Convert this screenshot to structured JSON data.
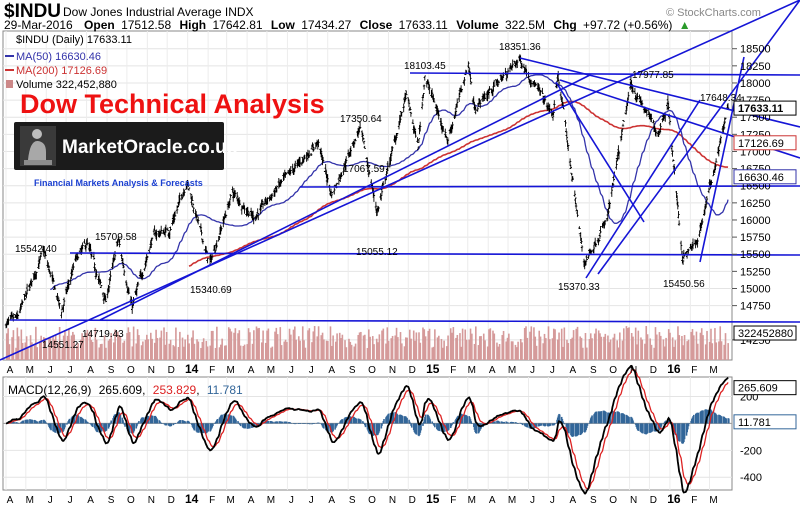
{
  "header": {
    "symbol": "$INDU",
    "name": "Dow Jones Industrial Average INDX",
    "date": "29-Mar-2016",
    "open_label": "Open",
    "open": "17512.58",
    "high_label": "High",
    "high": "17642.81",
    "low_label": "Low",
    "low": "17434.27",
    "close_label": "Close",
    "close": "17633.11",
    "volume_label": "Volume",
    "volume": "322.5M",
    "chg_label": "Chg",
    "chg": "+97.72 (+0.56%)",
    "chg_arrow": "▲",
    "credit": "© StockCharts.com"
  },
  "overlay": {
    "title": "Dow Technical Analysis",
    "logo": "MarketOracle.co.uk",
    "tagline": "Financial Markets Analysis & Forecasts"
  },
  "legend": {
    "price": "$INDU (Daily) 17633.11",
    "ma50": "MA(50) 16630.46",
    "ma200": "MA(200) 17126.69",
    "volume": "Volume 322,452,880"
  },
  "colors": {
    "price": "#000000",
    "ma50": "#3333aa",
    "ma200": "#cc3333",
    "volume": "#cc6666",
    "trendline": "#1515d6",
    "macd": "#000000",
    "signal": "#dd2222",
    "histogram": "#336699"
  },
  "chart_data": [
    {
      "type": "line",
      "ylim": [
        14000,
        18700
      ],
      "y_ticks": [
        14250,
        14750,
        15000,
        15250,
        15500,
        15750,
        16000,
        16250,
        16500,
        16750,
        17000,
        17250,
        17500,
        17750,
        18000,
        18250,
        18500
      ],
      "x_months": [
        "A",
        "M",
        "J",
        "J",
        "A",
        "S",
        "O",
        "N",
        "D",
        "14",
        "F",
        "M",
        "A",
        "M",
        "J",
        "J",
        "A",
        "S",
        "O",
        "N",
        "D",
        "15",
        "F",
        "M",
        "A",
        "M",
        "J",
        "J",
        "A",
        "S",
        "O",
        "N",
        "D",
        "16",
        "F",
        "M"
      ],
      "x_start": "2013-04",
      "price_points": [
        {
          "d": "2013-04-01",
          "v": 14480
        },
        {
          "d": "2013-04-18",
          "v": 14560
        },
        {
          "d": "2013-05-10",
          "v": 15100
        },
        {
          "d": "2013-05-28",
          "v": 15542.4
        },
        {
          "d": "2013-06-24",
          "v": 14659
        },
        {
          "d": "2013-07-15",
          "v": 15400
        },
        {
          "d": "2013-08-02",
          "v": 15658
        },
        {
          "d": "2013-08-30",
          "v": 14810
        },
        {
          "d": "2013-09-18",
          "v": 15709.58
        },
        {
          "d": "2013-10-09",
          "v": 14719.43
        },
        {
          "d": "2013-11-10",
          "v": 15780
        },
        {
          "d": "2013-12-05",
          "v": 15850
        },
        {
          "d": "2013-12-31",
          "v": 16576
        },
        {
          "d": "2014-02-03",
          "v": 15340.69
        },
        {
          "d": "2014-03-10",
          "v": 16400
        },
        {
          "d": "2014-04-11",
          "v": 16030
        },
        {
          "d": "2014-05-20",
          "v": 16500
        },
        {
          "d": "2014-07-17",
          "v": 17138
        },
        {
          "d": "2014-08-07",
          "v": 16368
        },
        {
          "d": "2014-09-19",
          "v": 17350.64
        },
        {
          "d": "2014-10-15",
          "v": 16117
        },
        {
          "d": "2014-11-28",
          "v": 17828
        },
        {
          "d": "2014-12-16",
          "v": 17067.59
        },
        {
          "d": "2014-12-26",
          "v": 18103.45
        },
        {
          "d": "2015-01-30",
          "v": 17165
        },
        {
          "d": "2015-03-02",
          "v": 18288
        },
        {
          "d": "2015-03-11",
          "v": 17635
        },
        {
          "d": "2015-05-19",
          "v": 18351.36
        },
        {
          "d": "2015-07-08",
          "v": 17515
        },
        {
          "d": "2015-07-16",
          "v": 18120
        },
        {
          "d": "2015-08-24",
          "v": 15370.33
        },
        {
          "d": "2015-09-28",
          "v": 16000
        },
        {
          "d": "2015-11-03",
          "v": 17977.85
        },
        {
          "d": "2015-12-14",
          "v": 17265
        },
        {
          "d": "2015-12-29",
          "v": 17720
        },
        {
          "d": "2016-01-20",
          "v": 15450.56
        },
        {
          "d": "2016-02-11",
          "v": 15660
        },
        {
          "d": "2016-03-29",
          "v": 17633.11
        }
      ],
      "annotations": [
        {
          "label": "15542.40",
          "value": 15542.4
        },
        {
          "label": "15709.58",
          "value": 15709.58
        },
        {
          "label": "14551.27",
          "value": 14551.27
        },
        {
          "label": "14719.43",
          "value": 14719.43
        },
        {
          "label": "15340.69",
          "value": 15340.69
        },
        {
          "label": "17350.64",
          "value": 17350.64
        },
        {
          "label": "17067.59",
          "value": 17067.59
        },
        {
          "label": "15055.12",
          "value": 15055.12
        },
        {
          "label": "18103.45",
          "value": 18103.45
        },
        {
          "label": "18351.36",
          "value": 18351.36
        },
        {
          "label": "15370.33",
          "value": 15370.33
        },
        {
          "label": "17977.85",
          "value": 17977.85
        },
        {
          "label": "17648.34",
          "value": 17648.34
        },
        {
          "label": "15450.56",
          "value": 15450.56
        }
      ],
      "value_boxes": [
        {
          "label": "17633.11",
          "value": 17633.11
        },
        {
          "label": "17126.69",
          "value": 17126.69
        },
        {
          "label": "16630.46",
          "value": 16630.46
        },
        {
          "label": "322452880",
          "value": 14350
        }
      ]
    },
    {
      "type": "line",
      "title": "MACD(12,26,9)",
      "macd": 265.609,
      "signal": 253.829,
      "histogram": 11.781,
      "ylim": [
        -480,
        330
      ],
      "y_ticks": [
        200,
        -200,
        -400
      ],
      "value_boxes": [
        {
          "label": "265.609",
          "value": 265.609
        },
        {
          "label": "11.781",
          "value": 11.781
        }
      ]
    }
  ]
}
